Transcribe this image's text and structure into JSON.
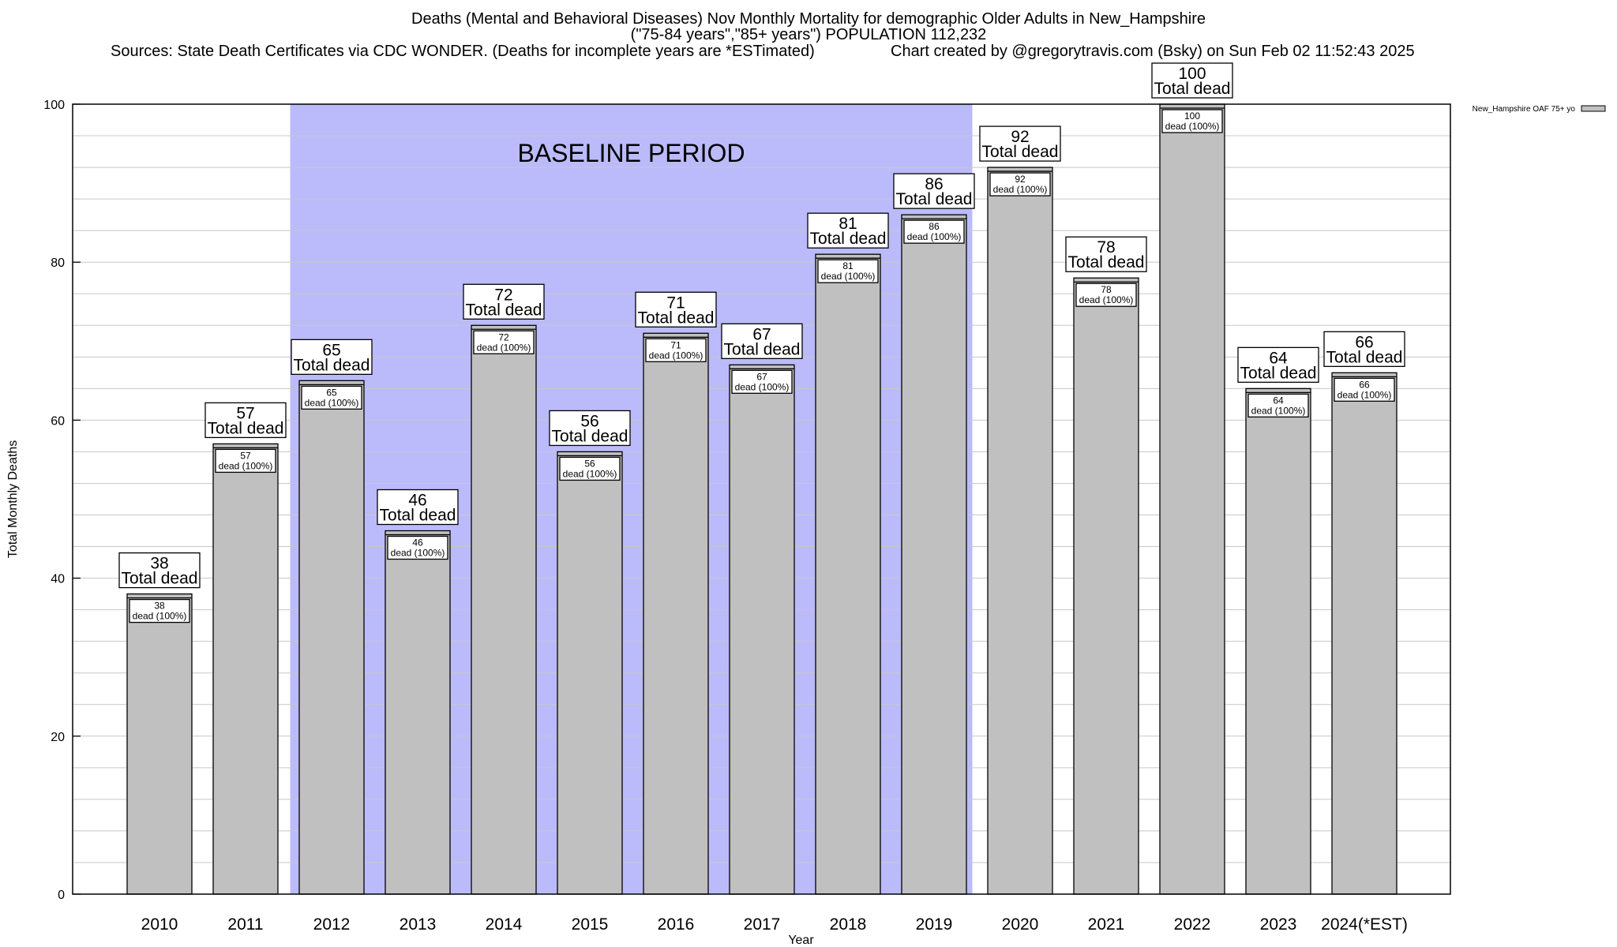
{
  "header": {
    "title_line1": "Deaths (Mental and Behavioral Diseases) Nov Monthly Mortality for demographic Older Adults in New_Hampshire",
    "title_line2": "(\"75-84 years\",\"85+ years\") POPULATION 112,232",
    "sources": "Sources: State Death Certificates via CDC WONDER. (Deaths for incomplete years are *ESTimated)",
    "credit": "Chart created by @gregorytravis.com (Bsky) on Sun Feb 02 11:52:43 2025"
  },
  "chart_data": {
    "type": "bar",
    "xlabel": "Year",
    "ylabel": "Total Monthly Deaths",
    "ylim": [
      0,
      100
    ],
    "yticks": [
      0,
      20,
      40,
      60,
      80,
      100
    ],
    "grid": true,
    "legend_position": "top-right",
    "categories": [
      "2010",
      "2011",
      "2012",
      "2013",
      "2014",
      "2015",
      "2016",
      "2017",
      "2018",
      "2019",
      "2020",
      "2021",
      "2022",
      "2023",
      "2024(*EST)"
    ],
    "series": [
      {
        "name": "New_Hampshire OAF 75+ yo",
        "values": [
          38,
          57,
          65,
          46,
          72,
          56,
          71,
          67,
          81,
          86,
          92,
          78,
          100,
          64,
          66
        ]
      }
    ],
    "top_label_suffix": "Total dead",
    "inner_label_suffix": "dead (100%)",
    "annotation": {
      "text": "BASELINE PERIOD",
      "start_category": "2012",
      "end_category": "2019"
    },
    "colors": {
      "bar": "#c0c0c0",
      "baseline_band": "#bbbbfb",
      "grid": "#c8c8c8"
    }
  }
}
